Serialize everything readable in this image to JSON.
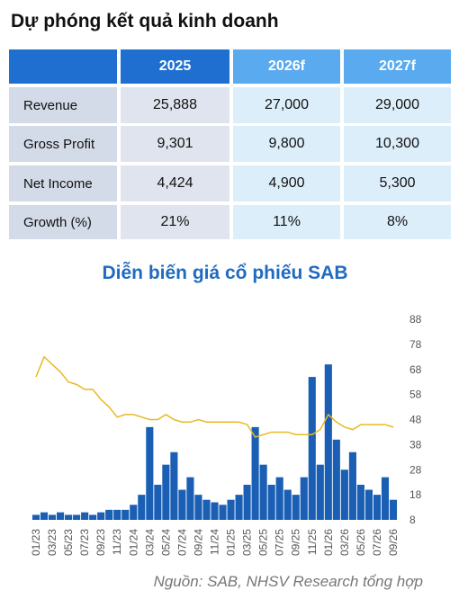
{
  "header": {
    "title": "Dự phóng kết quả kinh doanh"
  },
  "table": {
    "columns": [
      "2025",
      "2026f",
      "2027f"
    ],
    "rows": [
      {
        "label": "Revenue",
        "values": [
          "25,888",
          "27,000",
          "29,000"
        ]
      },
      {
        "label": "Gross Profit",
        "values": [
          "9,301",
          "9,800",
          "10,300"
        ]
      },
      {
        "label": "Net Income",
        "values": [
          "4,424",
          "4,900",
          "5,300"
        ]
      },
      {
        "label": "Growth (%)",
        "values": [
          "21%",
          "11%",
          "8%"
        ]
      }
    ]
  },
  "chart_data": {
    "type": "combo",
    "title": "Diễn biến giá cổ phiếu SAB",
    "categories": [
      "01/23",
      null,
      "03/23",
      null,
      "05/23",
      null,
      "07/23",
      null,
      "09/23",
      null,
      "11/23",
      null,
      "01/24",
      null,
      "03/24",
      null,
      "05/24",
      null,
      "07/24",
      null,
      "09/24",
      null,
      "11/24",
      null,
      "01/25",
      null,
      "03/25",
      null,
      "05/25",
      null,
      "07/25",
      null,
      "09/25",
      null,
      "11/25",
      null,
      "01/26",
      null,
      "03/26",
      null,
      "05/26",
      null,
      "07/26",
      null,
      "09/26"
    ],
    "series": [
      {
        "type": "bar",
        "color": "#1a5fb4",
        "values": [
          10,
          11,
          10,
          11,
          10,
          10,
          11,
          10,
          11,
          12,
          12,
          12,
          14,
          18,
          45,
          22,
          30,
          35,
          20,
          25,
          18,
          16,
          15,
          14,
          16,
          18,
          22,
          45,
          30,
          22,
          25,
          20,
          18,
          25,
          65,
          30,
          70,
          40,
          28,
          35,
          22,
          20,
          18,
          25,
          16
        ]
      },
      {
        "type": "line",
        "color": "#e8b923",
        "values": [
          65,
          73,
          70,
          67,
          63,
          62,
          60,
          60,
          56,
          53,
          49,
          50,
          50,
          49,
          48,
          48,
          50,
          48,
          47,
          47,
          48,
          47,
          47,
          47,
          47,
          47,
          46,
          41,
          42,
          43,
          43,
          43,
          42,
          42,
          42,
          44,
          50,
          47,
          45,
          44,
          46,
          46,
          46,
          46,
          45
        ]
      }
    ],
    "ylim": [
      8,
      88
    ],
    "yticks": [
      88,
      78,
      68,
      58,
      48,
      38,
      28,
      18,
      8
    ]
  },
  "source": "Nguồn: SAB, NHSV Research tổng hợp"
}
